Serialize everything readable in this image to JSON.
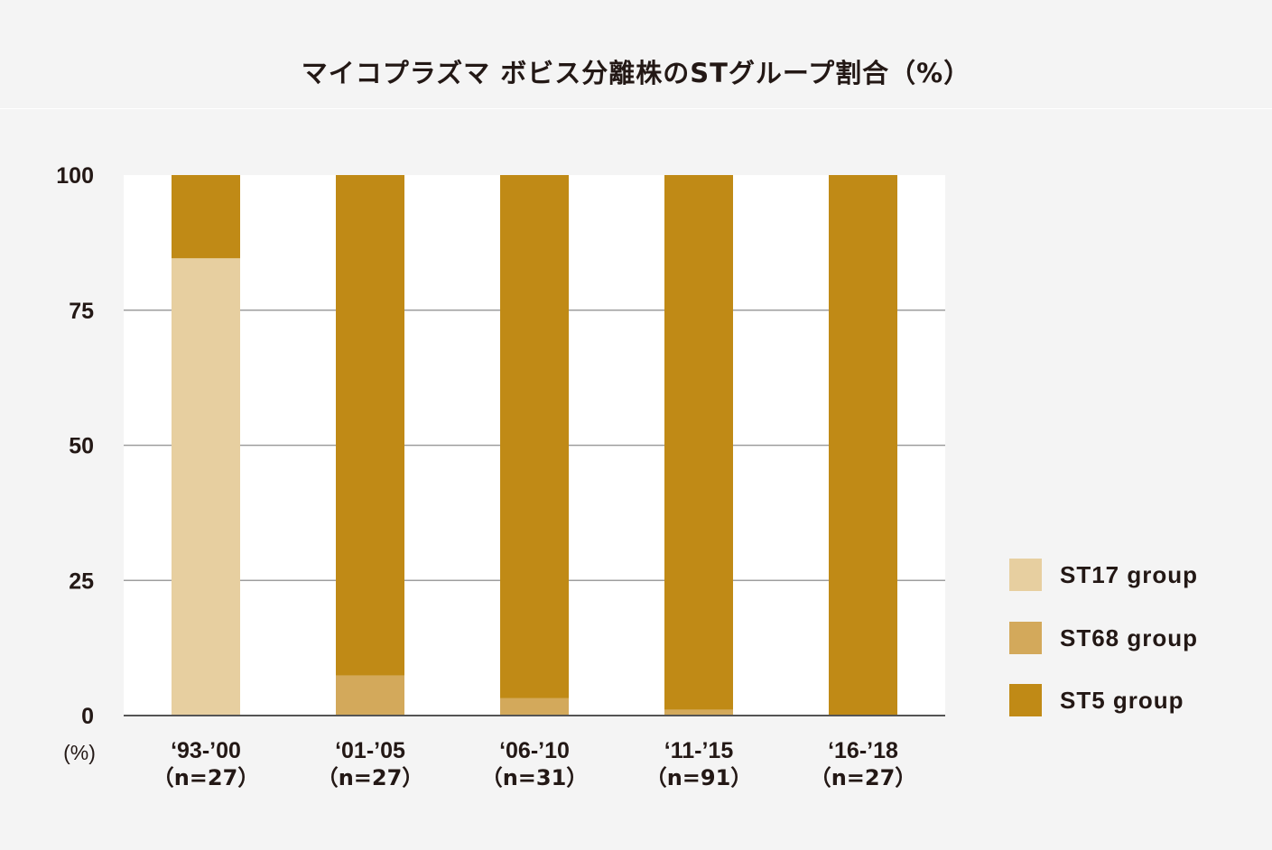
{
  "title": "マイコプラズマ ボビス分離株のSTグループ割合（%）",
  "colors": {
    "st17": "#e7cfa0",
    "st68": "#d3a95b",
    "st5": "#c08a16",
    "grid": "#9e9e9e",
    "plot_bg": "#ffffff",
    "text": "#231815"
  },
  "chart_data": {
    "type": "bar",
    "stacked": true,
    "title": "マイコプラズマ ボビス分離株のSTグループ割合（%）",
    "ylabel": "(%)",
    "ylim": [
      0,
      100
    ],
    "yticks": [
      "0",
      "25",
      "50",
      "75",
      "100"
    ],
    "categories": [
      "‘93-’00",
      "‘01-’05",
      "‘06-’10",
      "‘11-’15",
      "‘16-’18"
    ],
    "sample_sizes": [
      "（n=27）",
      "（n=27）",
      "（n=31）",
      "（n=91）",
      "（n=27）"
    ],
    "series": [
      {
        "name": "ST17 group",
        "values": [
          84.6,
          0,
          0,
          0,
          0
        ]
      },
      {
        "name": "ST68 group",
        "values": [
          0,
          7.4,
          3.2,
          1.1,
          0
        ]
      },
      {
        "name": "ST5 group",
        "values": [
          15.4,
          92.6,
          96.8,
          98.9,
          100
        ]
      }
    ],
    "legend_position": "right",
    "grid": true
  }
}
